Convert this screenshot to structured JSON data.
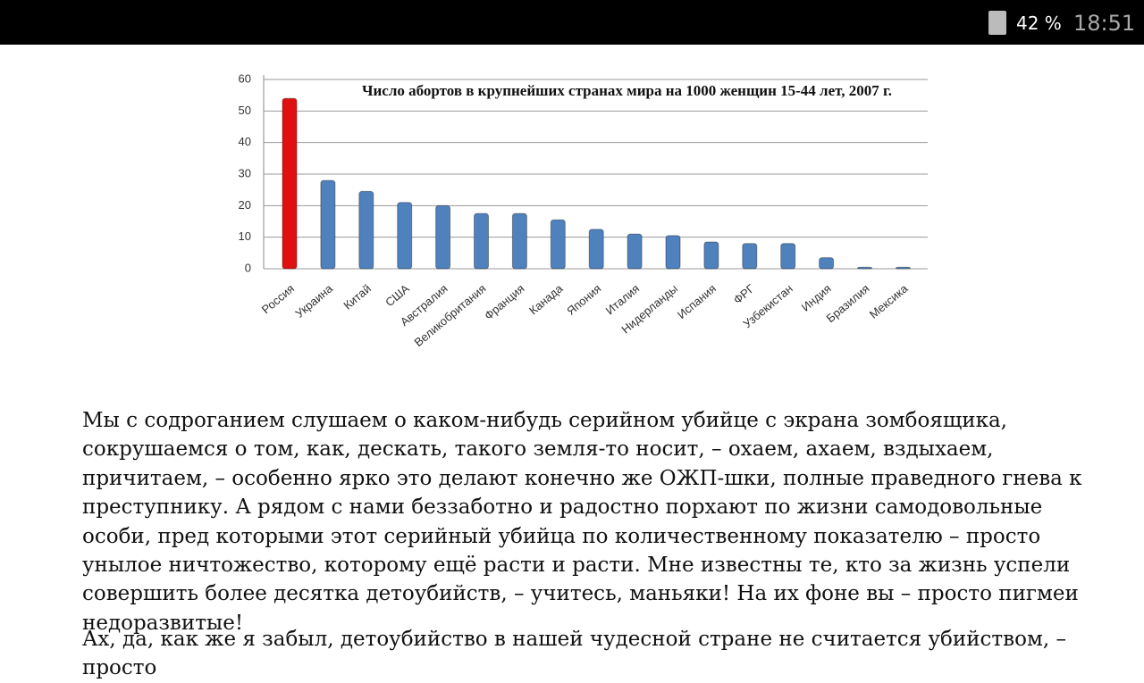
{
  "status_bar": {
    "battery": "42 %",
    "time": "18:51"
  },
  "chart_data": {
    "type": "bar",
    "title": "Число абортов в крупнейших странах мира на 1000 женщин 15-44 лет, 2007 г.",
    "categories": [
      "Россия",
      "Украина",
      "Китай",
      "США",
      "Австралия",
      "Великобритания",
      "Франция",
      "Канада",
      "Япония",
      "Италия",
      "Нидерланды",
      "Испания",
      "ФРГ",
      "Узбекистан",
      "Индия",
      "Бразилия",
      "Мексика"
    ],
    "values": [
      54,
      28,
      24.5,
      21,
      20,
      17.5,
      17.5,
      15.5,
      12.5,
      11,
      10.5,
      8.5,
      8,
      8,
      3.5,
      0.5,
      0.5
    ],
    "colors": [
      "#e01010",
      "#4f81bd",
      "#4f81bd",
      "#4f81bd",
      "#4f81bd",
      "#4f81bd",
      "#4f81bd",
      "#4f81bd",
      "#4f81bd",
      "#4f81bd",
      "#4f81bd",
      "#4f81bd",
      "#4f81bd",
      "#4f81bd",
      "#4f81bd",
      "#4f81bd",
      "#4f81bd"
    ],
    "ylim": [
      0,
      60
    ],
    "yticks": [
      0,
      10,
      20,
      30,
      40,
      50,
      60
    ],
    "grid": true
  },
  "paragraphs": [
    "Мы с содроганием слушаем о каком-нибудь серийном убийце с экрана зомбоящика, сокрушаемся о том, как, дескать, такого земля-то носит, – охаем, ахаем, вздыхаем, причитаем, – особенно ярко это делают конечно же ОЖП-шки, полные праведного гнева к преступнику. А рядом с нами беззаботно и радостно порхают по жизни самодовольные особи, пред которыми этот серийный убийца по количественному показателю – просто унылое ничтожество, которому ещё расти и расти. Мне известны те, кто за жизнь успели совершить более десятка детоубийств, – учитесь, маньяки! На их фоне вы – просто пигмеи недоразвитые!",
    "Ах, да, как же я забыл, детоубийство в нашей чудесной стране не считается убийством, – просто"
  ]
}
